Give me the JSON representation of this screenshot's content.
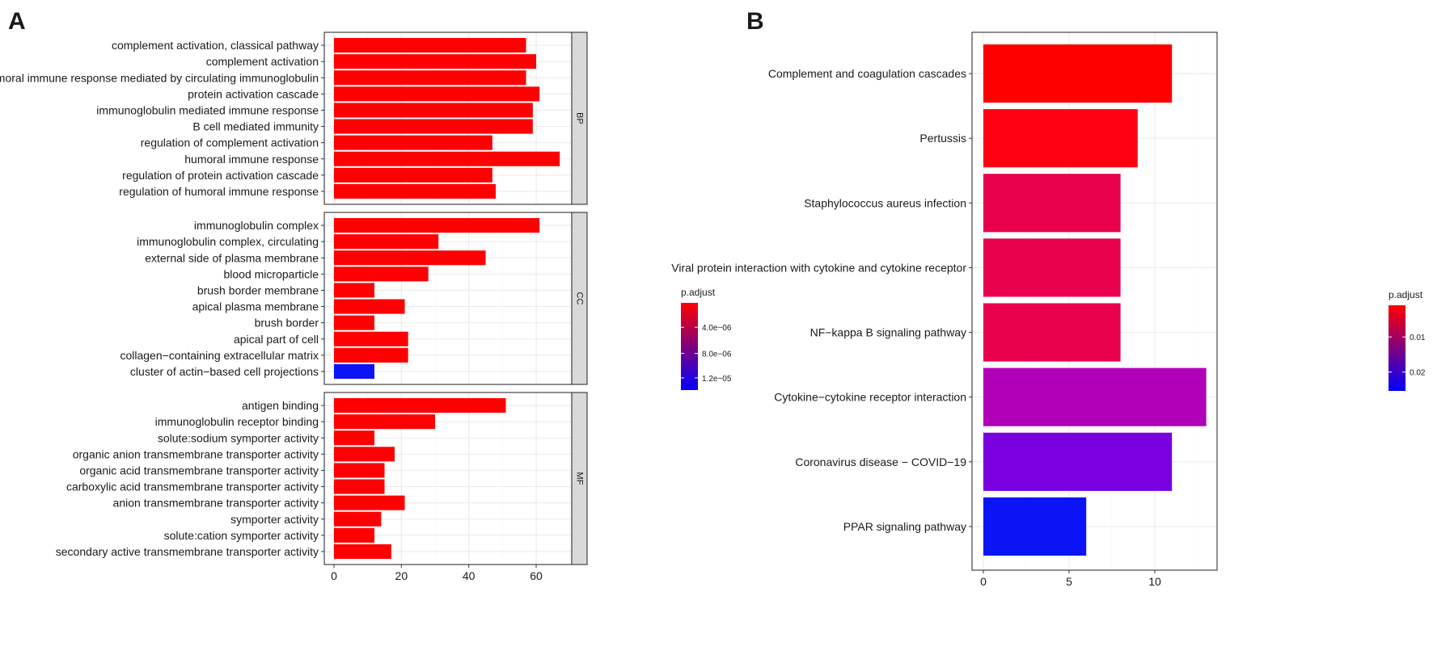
{
  "chart_data": [
    {
      "type": "bar",
      "orientation": "horizontal",
      "panel_letter": "A",
      "xlabel": "",
      "ylabel": "",
      "xlim": [
        0,
        70
      ],
      "x_ticks": [
        0,
        20,
        40,
        60
      ],
      "facets": [
        {
          "name": "BP",
          "categories": [
            "complement activation, classical pathway",
            "complement activation",
            "humoral immune response mediated by circulating immunoglobulin",
            "protein activation cascade",
            "immunoglobulin mediated immune response",
            "B cell mediated immunity",
            "regulation of complement activation",
            "humoral immune response",
            "regulation of protein activation cascade",
            "regulation of humoral immune response"
          ],
          "values": [
            57,
            60,
            57,
            61,
            59,
            59,
            47,
            67,
            47,
            48
          ],
          "colors": [
            "#ff0000",
            "#ff0000",
            "#ff0000",
            "#ff0000",
            "#ff0000",
            "#ff0000",
            "#ff0000",
            "#ff0000",
            "#ff0000",
            "#ff0000"
          ]
        },
        {
          "name": "CC",
          "categories": [
            "immunoglobulin complex",
            "immunoglobulin complex, circulating",
            "external side of plasma membrane",
            "blood microparticle",
            "brush border membrane",
            "apical plasma membrane",
            "brush border",
            "apical part of cell",
            "collagen−containing extracellular matrix",
            "cluster of actin−based cell projections"
          ],
          "values": [
            61,
            31,
            45,
            28,
            12,
            21,
            12,
            22,
            22,
            12
          ],
          "colors": [
            "#ff0000",
            "#ff0000",
            "#ff0000",
            "#ff0000",
            "#ff0000",
            "#ff0000",
            "#ff0000",
            "#ff0000",
            "#ff0000",
            "#0a14f5"
          ]
        },
        {
          "name": "MF",
          "categories": [
            "antigen binding",
            "immunoglobulin receptor binding",
            "solute:sodium symporter activity",
            "organic anion transmembrane transporter activity",
            "organic acid transmembrane transporter activity",
            "carboxylic acid transmembrane transporter activity",
            "anion transmembrane transporter activity",
            "symporter activity",
            "solute:cation symporter activity",
            "secondary active transmembrane transporter activity"
          ],
          "values": [
            51,
            30,
            12,
            18,
            15,
            15,
            21,
            14,
            12,
            17
          ],
          "colors": [
            "#ff0000",
            "#ff0000",
            "#ff0000",
            "#ff0000",
            "#ff0000",
            "#ff0000",
            "#ff0000",
            "#ff0000",
            "#ff0000",
            "#ff0000"
          ]
        }
      ],
      "legend": {
        "title": "p.adjust",
        "ticks": [
          "4.0e−06",
          "8.0e−06",
          "1.2e−05"
        ],
        "tick_fractions": [
          0.28,
          0.58,
          0.86
        ],
        "gradient": [
          "#ff0000",
          "#0000ff"
        ]
      }
    },
    {
      "type": "bar",
      "orientation": "horizontal",
      "panel_letter": "B",
      "xlabel": "",
      "ylabel": "",
      "xlim": [
        0,
        14
      ],
      "x_ticks": [
        0,
        5,
        10
      ],
      "categories": [
        "Complement and coagulation cascades",
        "Pertussis",
        "Staphylococcus aureus infection",
        "Viral protein interaction with cytokine and cytokine receptor",
        "NF−kappa B signaling pathway",
        "Cytokine−cytokine receptor interaction",
        "Coronavirus disease − COVID−19",
        "PPAR signaling pathway"
      ],
      "values": [
        11,
        9,
        8,
        8,
        8,
        13,
        11,
        6
      ],
      "colors": [
        "#ff0000",
        "#ff0012",
        "#e8004c",
        "#e8004c",
        "#e8004c",
        "#b000b8",
        "#7a00e0",
        "#0a14f5"
      ],
      "legend": {
        "title": "p.adjust",
        "ticks": [
          "0.01",
          "0.02"
        ],
        "tick_fractions": [
          0.37,
          0.78
        ],
        "gradient": [
          "#ff0000",
          "#0000ff"
        ]
      }
    }
  ]
}
